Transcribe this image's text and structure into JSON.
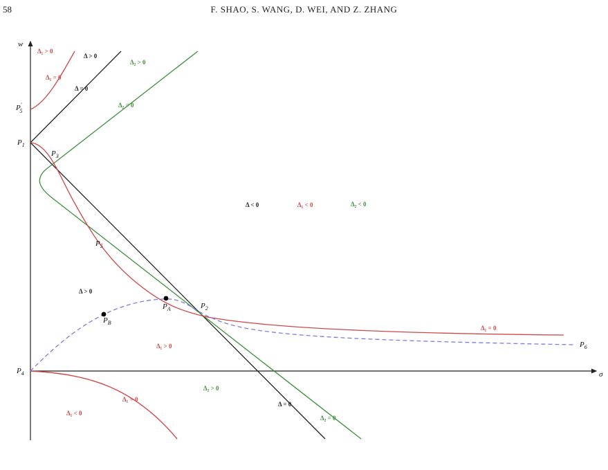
{
  "page": {
    "number": "58",
    "running_head": "F. SHAO, S. WANG, D. WEI, AND Z. ZHANG"
  },
  "colors": {
    "black": "#222222",
    "red": "#cf4848",
    "green": "#3f8f3f",
    "dashed": "#7b7be0"
  },
  "axes": {
    "x_label": "σ",
    "y_label": "w"
  },
  "points": {
    "p5prime_main": "P",
    "p5prime_sup": "′",
    "p5prime_sub": "5",
    "p1_main": "P",
    "p1_sub": "1",
    "p3_main": "P",
    "p3_sub": "3",
    "p5_main": "P",
    "p5_sub": "5",
    "pa_main": "P",
    "pa_sub": "A",
    "pb_main": "P",
    "pb_sub": "B",
    "p2_main": "P",
    "p2_sub": "2",
    "p4_main": "P",
    "p4_sub": "4",
    "p6_main": "P",
    "p6_sub": "6"
  },
  "regions": {
    "d1_gt_top": "Δ₁ > 0",
    "d_gt_top": "Δ > 0",
    "d2_gt_top": "Δ₂ > 0",
    "d1_eq_top": "Δ₁ = 0",
    "d_eq_top": "Δ = 0",
    "d2_eq_top": "Δ₂ = 0",
    "d_lt_mid": "Δ < 0",
    "d1_lt_mid": "Δ₁ < 0",
    "d2_lt_mid": "Δ₂ < 0",
    "d_gt_left": "Δ > 0",
    "d1_eq_right": "Δ₁ = 0",
    "d1_gt_mid": "Δ₁ > 0",
    "d2_gt_bottom": "Δ₂ > 0",
    "d1_eq_bottom": "Δ₁ = 0",
    "d1_lt_bottom": "Δ₁ < 0",
    "d_eq_bottom": "Δ = 0",
    "d2_eq_bottom": "Δ₂ = 0"
  }
}
